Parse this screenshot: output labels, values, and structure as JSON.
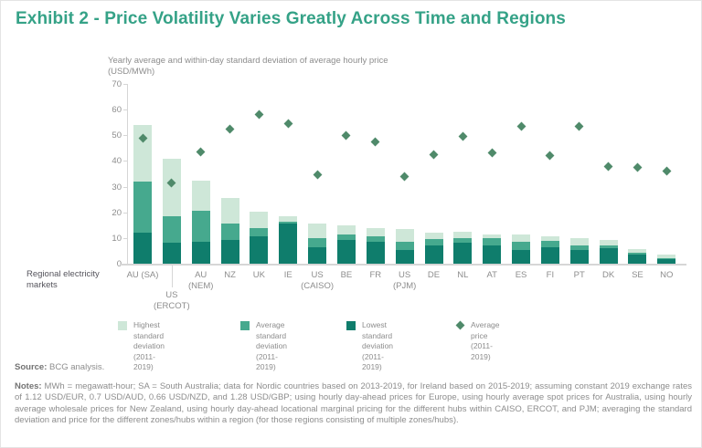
{
  "page": {
    "title": "Exhibit 2 - Price Volatility Varies Greatly Across Time and Regions",
    "subtitle_line1": "Yearly average and within-day standard deviation of average hourly price",
    "subtitle_line2": "(USD/MWh)",
    "axis_caption_line1": "Regional electricity",
    "axis_caption_line2": "markets",
    "source_label": "Source:",
    "source_text": "BCG analysis.",
    "notes_label": "Notes:",
    "notes_text": "MWh = megawatt-hour; SA = South Australia; data for Nordic countries based on 2013-2019, for Ireland based on 2015-2019; assuming constant 2019 exchange rates of 1.12 USD/EUR, 0.7 USD/AUD, 0.66 USD/NZD, and 1.28 USD/GBP; using hourly day-ahead prices for Europe, using hourly average spot prices for Australia, using hourly average wholesale prices for New Zealand, using hourly day-ahead locational marginal pricing for the different hubs within CAISO, ERCOT, and PJM; averaging the standard deviation and price for the different zones/hubs within a region (for those regions consisting of multiple zones/hubs)."
  },
  "colors": {
    "title": "#35a287",
    "bar_highest": "#cee7d8",
    "bar_average": "#46a98e",
    "bar_lowest": "#0f7d6c",
    "price_diamond": "#4f8a6a",
    "gray_text": "#8d8d8d",
    "dark_text": "#55545c",
    "label_gray": "#737373",
    "axis_line": "#d6d6d6"
  },
  "legend": {
    "items": [
      {
        "marker": "square",
        "color_key": "bar_highest",
        "label_line1": "Highest standard deviation",
        "label_line2": "(2011-2019)"
      },
      {
        "marker": "square",
        "color_key": "bar_average",
        "label_line1": "Average standard deviation",
        "label_line2": "(2011-2019)"
      },
      {
        "marker": "square",
        "color_key": "bar_lowest",
        "label_line1": "Lowest standard deviation",
        "label_line2": "(2011-2019)"
      },
      {
        "marker": "diamond",
        "color_key": "price_diamond",
        "label_line1": "Average price (2011-2019)",
        "label_line2": ""
      }
    ]
  },
  "chart_data": {
    "type": "bar",
    "subtype": "overlaid std-deviation bars with scatter price markers",
    "title": "Yearly average and within-day standard deviation of average hourly price (USD/MWh)",
    "xlabel": "Regional electricity markets",
    "ylabel": "",
    "ylim": [
      0,
      70
    ],
    "y_ticks": [
      0,
      10,
      20,
      30,
      40,
      50,
      60,
      70
    ],
    "grid": false,
    "legend_position": "bottom",
    "categories": [
      "AU (SA)",
      "US (ERCOT)",
      "AU (NEM)",
      "NZ",
      "UK",
      "IE",
      "US (CAISO)",
      "BE",
      "FR",
      "US (PJM)",
      "DE",
      "NL",
      "AT",
      "ES",
      "FI",
      "PT",
      "DK",
      "SE",
      "NO"
    ],
    "category_label_lines": [
      [
        "AU (SA)"
      ],
      [
        "US",
        "(ERCOT)"
      ],
      [
        "AU",
        "(NEM)"
      ],
      [
        "NZ"
      ],
      [
        "UK"
      ],
      [
        "IE"
      ],
      [
        "US",
        "(CAISO)"
      ],
      [
        "BE"
      ],
      [
        "FR"
      ],
      [
        "US",
        "(PJM)"
      ],
      [
        "DE"
      ],
      [
        "NL"
      ],
      [
        "AT"
      ],
      [
        "ES"
      ],
      [
        "FI"
      ],
      [
        "PT"
      ],
      [
        "DK"
      ],
      [
        "SE"
      ],
      [
        "NO"
      ]
    ],
    "dropped_label_index": 1,
    "bar_note": "bar series are drawn from 0 and overlaid (highest behind, lowest in front), giving a stacked look",
    "series": [
      {
        "name": "Highest standard deviation (2011-2019)",
        "type": "bar",
        "color_key": "bar_highest",
        "values": [
          54,
          41,
          32.5,
          25.5,
          20.3,
          18.3,
          15.7,
          15,
          13.8,
          13.4,
          12.2,
          12.4,
          11.5,
          11.2,
          10.6,
          10.1,
          9.2,
          5.8,
          3.7
        ]
      },
      {
        "name": "Average standard deviation (2011-2019)",
        "type": "bar",
        "color_key": "bar_average",
        "values": [
          32,
          18.5,
          20.5,
          15.5,
          13.8,
          16.5,
          10,
          11.5,
          10.8,
          8.7,
          9.6,
          9.9,
          9.8,
          8.6,
          8.9,
          7.1,
          7.1,
          4.3,
          2.3
        ]
      },
      {
        "name": "Lowest standard deviation (2011-2019)",
        "type": "bar",
        "color_key": "bar_lowest",
        "values": [
          12,
          8.3,
          8.5,
          9.3,
          10.8,
          15.5,
          6.5,
          9.2,
          8.6,
          5.5,
          7,
          8.1,
          7,
          5.2,
          6.5,
          5.2,
          6.1,
          3.6,
          1.8
        ]
      },
      {
        "name": "Average price (2011-2019)",
        "type": "scatter",
        "color_key": "price_diamond",
        "values": [
          49,
          31.5,
          43.5,
          52.5,
          58,
          54.5,
          34.5,
          50,
          47.5,
          34,
          42.5,
          49.5,
          43,
          53.5,
          42,
          53.5,
          38,
          37.5,
          36
        ]
      }
    ]
  }
}
